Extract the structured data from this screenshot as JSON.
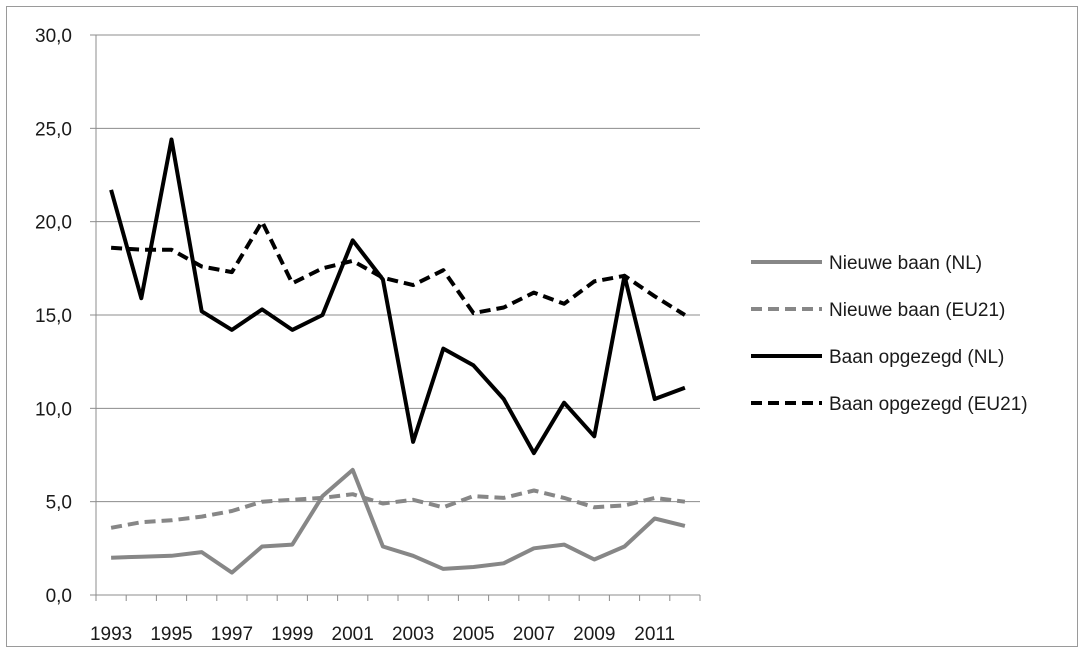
{
  "chart_data": {
    "type": "line",
    "title": "",
    "xlabel": "",
    "ylabel": "",
    "ylim": [
      0,
      30
    ],
    "yticks": [
      "0,0",
      "5,0",
      "10,0",
      "15,0",
      "20,0",
      "25,0",
      "30,0"
    ],
    "ytick_values": [
      0,
      5,
      10,
      15,
      20,
      25,
      30
    ],
    "x": [
      1993,
      1994,
      1995,
      1996,
      1997,
      1998,
      1999,
      2000,
      2001,
      2002,
      2003,
      2004,
      2005,
      2006,
      2007,
      2008,
      2009,
      2010,
      2011,
      2012
    ],
    "xtick_labels": [
      "1993",
      "1995",
      "1997",
      "1999",
      "2001",
      "2003",
      "2005",
      "2007",
      "2009",
      "2011"
    ],
    "xtick_values": [
      1993,
      1995,
      1997,
      1999,
      2001,
      2003,
      2005,
      2007,
      2009,
      2011
    ],
    "grid": true,
    "legend_position": "right",
    "series": [
      {
        "name": "Nieuwe baan (NL)",
        "color": "#878787",
        "dash": "solid",
        "values": [
          2.0,
          2.05,
          2.1,
          2.3,
          1.2,
          2.6,
          2.7,
          5.3,
          6.7,
          2.6,
          2.1,
          1.4,
          1.5,
          1.7,
          2.5,
          2.7,
          1.9,
          2.6,
          4.1,
          3.7
        ]
      },
      {
        "name": "Nieuwe baan (EU21)",
        "color": "#878787",
        "dash": "dashed",
        "values": [
          3.6,
          3.9,
          4.0,
          4.2,
          4.5,
          5.0,
          5.1,
          5.2,
          5.4,
          4.9,
          5.1,
          4.7,
          5.3,
          5.2,
          5.6,
          5.2,
          4.7,
          4.8,
          5.2,
          5.0
        ]
      },
      {
        "name": "Baan opgezegd (NL)",
        "color": "#000000",
        "dash": "solid",
        "values": [
          21.7,
          15.9,
          24.4,
          15.2,
          14.2,
          15.3,
          14.2,
          15.0,
          19.0,
          16.9,
          8.2,
          13.2,
          12.3,
          10.5,
          7.6,
          10.3,
          8.5,
          17.1,
          10.5,
          11.1
        ]
      },
      {
        "name": "Baan opgezegd (EU21)",
        "color": "#000000",
        "dash": "dashed",
        "values": [
          18.6,
          18.5,
          18.5,
          17.6,
          17.3,
          20.0,
          16.7,
          17.5,
          17.9,
          17.0,
          16.6,
          17.4,
          15.1,
          15.4,
          16.2,
          15.6,
          16.8,
          17.1,
          16.0,
          15.0
        ]
      }
    ]
  }
}
